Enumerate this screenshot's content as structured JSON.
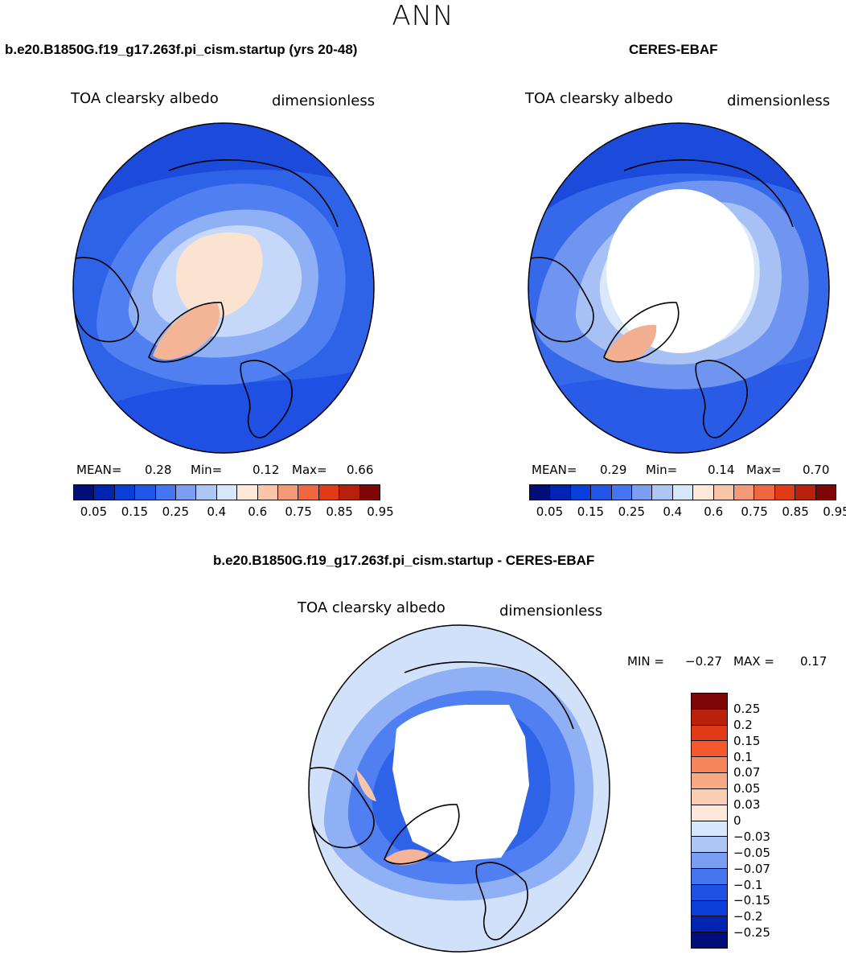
{
  "figure": {
    "title": "ANN"
  },
  "panels": [
    {
      "title": "b.e20.B1850G.f19_g17.263f.pi_cism.startup (yrs 20-48)",
      "variable": "TOA clearsky albedo",
      "units": "dimensionless",
      "mean_label": "MEAN=",
      "mean": "0.28",
      "min_label": "Min=",
      "min": "0.12",
      "max_label": "Max=",
      "max": "0.66"
    },
    {
      "title": "CERES-EBAF",
      "variable": "TOA clearsky albedo",
      "units": "dimensionless",
      "mean_label": "MEAN=",
      "mean": "0.29",
      "min_label": "Min=",
      "min": "0.14",
      "max_label": "Max=",
      "max": "0.70"
    }
  ],
  "diff_panel": {
    "title": "b.e20.B1850G.f19_g17.263f.pi_cism.startup - CERES-EBAF",
    "variable": "TOA clearsky albedo",
    "units": "dimensionless",
    "min_label": "MIN =",
    "min": "−0.27",
    "max_label": "MAX =",
    "max": "0.17"
  },
  "colorbars": {
    "absolute": {
      "colors": [
        "#000e7a",
        "#0024b2",
        "#0a3ed8",
        "#2156e8",
        "#4575ef",
        "#7b9df2",
        "#aec6f6",
        "#d6e6fb",
        "#fde8da",
        "#f9c6aa",
        "#f59a78",
        "#ef6640",
        "#e03a17",
        "#b8210c",
        "#7e0607"
      ],
      "tick_labels": [
        "0.05",
        "0.15",
        "0.25",
        "0.4",
        "0.6",
        "0.75",
        "0.85",
        "0.95"
      ]
    },
    "difference": {
      "colors": [
        "#7e0607",
        "#b8210c",
        "#e03a17",
        "#f5582a",
        "#f5855a",
        "#f8a882",
        "#f9cdb3",
        "#fde8da",
        "#d6e6fb",
        "#aec6f6",
        "#7b9df2",
        "#4575ef",
        "#1f4fe3",
        "#0a3ed8",
        "#0024b2",
        "#000e7a"
      ],
      "tick_labels": [
        "0.25",
        "0.2",
        "0.15",
        "0.1",
        "0.07",
        "0.05",
        "0.03",
        "0",
        "−0.03",
        "−0.05",
        "−0.07",
        "−0.1",
        "−0.15",
        "−0.2",
        "−0.25"
      ]
    }
  }
}
